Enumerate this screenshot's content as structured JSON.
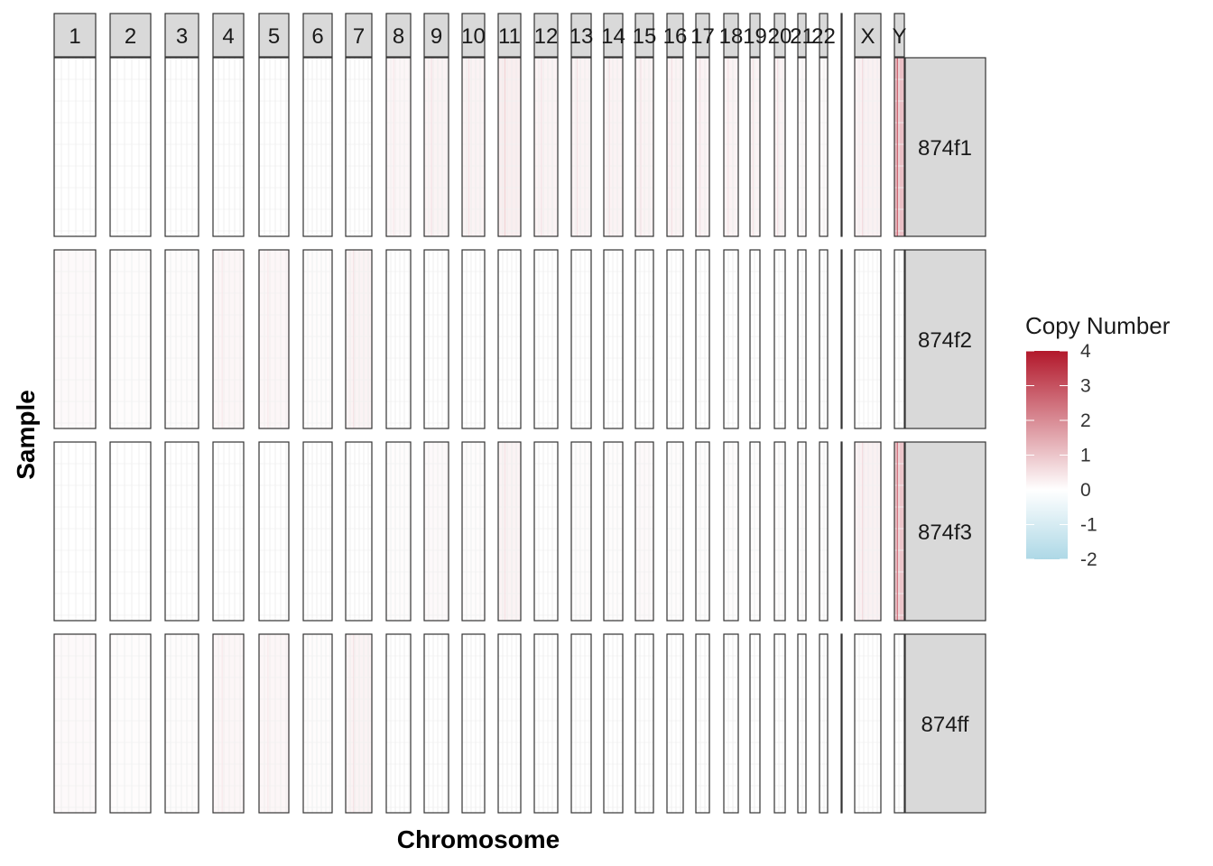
{
  "chart_data": {
    "type": "heatmap",
    "xlabel": "Chromosome",
    "ylabel": "Sample",
    "chromosomes": [
      "1",
      "2",
      "3",
      "4",
      "5",
      "6",
      "7",
      "8",
      "9",
      "10",
      "11",
      "12",
      "13",
      "14",
      "15",
      "16",
      "17",
      "18",
      "19",
      "20",
      "21",
      "22",
      "",
      "X",
      "Y"
    ],
    "samples": [
      "874f1",
      "874f2",
      "874f3",
      "874ff"
    ],
    "legend": {
      "title": "Copy Number",
      "ticks": [
        4,
        3,
        2,
        1,
        0,
        -1,
        -2
      ],
      "tick_labels": [
        "4",
        "3",
        "2",
        "1",
        "0",
        "-1",
        "-2"
      ],
      "range": [
        -2,
        4
      ],
      "colors": {
        "low": "#add8e6",
        "mid": "#ffffff",
        "high": "#b2182b"
      }
    },
    "values": [
      [
        0,
        0,
        0,
        0,
        0,
        0,
        0,
        0.15,
        0.2,
        0.2,
        0.3,
        0.2,
        0.2,
        0.2,
        0.2,
        0.2,
        0.2,
        0.2,
        0.2,
        0.2,
        0.1,
        0.1,
        0,
        0.25,
        1.1
      ],
      [
        0.1,
        0.05,
        0.05,
        0.15,
        0.15,
        0.05,
        0.2,
        0,
        0,
        0,
        0,
        0,
        0,
        0,
        0,
        0,
        0,
        0,
        0,
        0,
        0,
        0,
        0,
        0,
        0
      ],
      [
        0,
        0,
        0,
        0,
        0,
        0,
        0,
        0.05,
        0.1,
        0.05,
        0.2,
        0,
        0.05,
        0.05,
        0.1,
        0.05,
        0.05,
        0.05,
        0.05,
        0.05,
        0.05,
        0.05,
        0,
        0.25,
        1.0
      ],
      [
        0.1,
        0.05,
        0.05,
        0.15,
        0.15,
        0.05,
        0.2,
        0,
        0,
        0,
        0,
        0,
        0,
        0,
        0,
        0,
        0,
        0,
        0,
        0,
        0,
        0,
        0,
        0,
        0
      ]
    ]
  }
}
